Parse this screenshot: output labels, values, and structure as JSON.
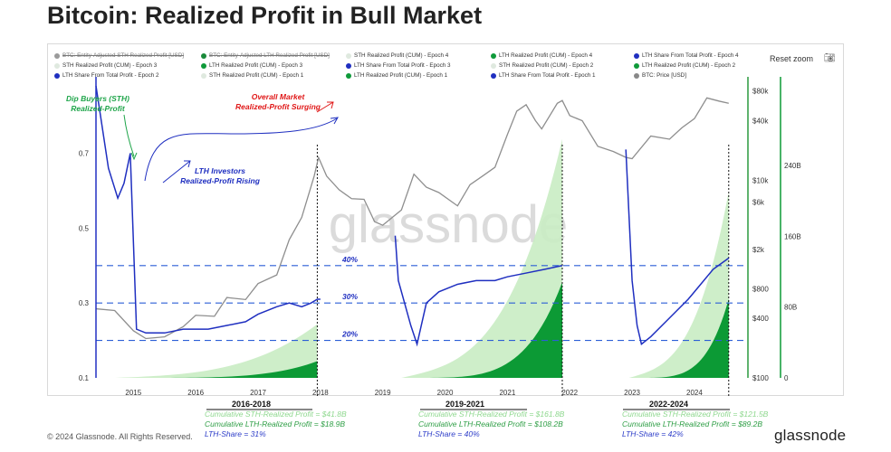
{
  "title": "Bitcoin: Realized Profit in Bull Market",
  "reset_zoom": "Reset zoom",
  "camera_icon": "camera-icon",
  "footer": "© 2024 Glassnode. All Rights Reserved.",
  "logo": "glassnode",
  "watermark": "glassnode",
  "legend": [
    {
      "label": "BTC: Entity-Adjusted STH Realized Profit [USD]",
      "color": "#9a9a9a",
      "struck": true
    },
    {
      "label": "BTC: Entity-Adjusted LTH Realized Profit [USD]",
      "color": "#1a8a3a",
      "struck": true
    },
    {
      "label": "STH Realized Profit (CUM) - Epoch 4",
      "color": "#dfe9df",
      "struck": false
    },
    {
      "label": "LTH Realized Profit (CUM) - Epoch 4",
      "color": "#0f9a3a",
      "struck": false
    },
    {
      "label": "LTH Share From Total Profit - Epoch 4",
      "color": "#1f2fc0",
      "struck": false
    },
    {
      "label": "STH Realized Profit (CUM) - Epoch 3",
      "color": "#dfe9df",
      "struck": false
    },
    {
      "label": "LTH Realized Profit (CUM) - Epoch 3",
      "color": "#0f9a3a",
      "struck": false
    },
    {
      "label": "LTH Share From Total Profit - Epoch 3",
      "color": "#1f2fc0",
      "struck": false
    },
    {
      "label": "STH Realized Profit (CUM) - Epoch 2",
      "color": "#dfe9df",
      "struck": false
    },
    {
      "label": "LTH Realized Profit (CUM) - Epoch 2",
      "color": "#0f9a3a",
      "struck": false
    },
    {
      "label": "LTH Share From Total Profit - Epoch 2",
      "color": "#1f2fc0",
      "struck": false
    },
    {
      "label": "STH Realized Profit (CUM) - Epoch 1",
      "color": "#dfe9df",
      "struck": false
    },
    {
      "label": "LTH Realized Profit (CUM) - Epoch 1",
      "color": "#0f9a3a",
      "struck": false
    },
    {
      "label": "LTH Share From Total Profit - Epoch 1",
      "color": "#1f2fc0",
      "struck": false
    },
    {
      "label": "BTC: Price [USD]",
      "color": "#888888",
      "struck": false
    }
  ],
  "annotations": {
    "dip_buyers": "Dip Buyers (STH)\nRealized-Profit",
    "lth_investors": "LTH Investors\nRealized-Profit Rising",
    "overall_market": "Overall Market\nRealized-Profit Surging"
  },
  "cycles": [
    {
      "header": "2016-2018",
      "sth": "Cumulative STH-Realized Profit  = $41.8B",
      "lth": "Cumulative LTH-Realized Profit    = $18.9B",
      "share": "LTH-Share = 31%"
    },
    {
      "header": "2019-2021",
      "sth": "Cumulative STH-Realized Profit  = $161.8B",
      "lth": "Cumulative LTH-Realized Profit    = $108.2B",
      "share": "LTH-Share = 40%"
    },
    {
      "header": "2022-2024",
      "sth": "Cumulative STH-Realized Profit  = $121.5B",
      "lth": "Cumulative LTH-Realized Profit    = $89.2B",
      "share": "LTH-Share = 42%"
    }
  ],
  "chart_data": {
    "type": "line",
    "x_ticks": [
      "2015",
      "2016",
      "2017",
      "2018",
      "2019",
      "2020",
      "2021",
      "2022",
      "2023",
      "2024"
    ],
    "x_range": [
      2014.4,
      2024.8
    ],
    "left_axis": {
      "ticks": [
        0.1,
        0.3,
        0.5,
        0.7
      ],
      "range": [
        0.1,
        0.88
      ]
    },
    "price_axis": {
      "scale": "log",
      "ticks": [
        100,
        400,
        800,
        2000,
        6000,
        10000,
        40000,
        80000
      ],
      "tick_labels": [
        "$100",
        "$400",
        "$800",
        "$2k",
        "$6k",
        "$10k",
        "$40k",
        "$80k"
      ],
      "range": [
        100,
        90000
      ]
    },
    "profit_axis": {
      "ticks": [
        0,
        80,
        160,
        240
      ],
      "tick_labels": [
        "0",
        "80B",
        "160B",
        "240B"
      ],
      "range": [
        0,
        330
      ]
    },
    "thresholds": [
      {
        "value": 0.4,
        "label": "40%"
      },
      {
        "value": 0.3,
        "label": "30%"
      },
      {
        "value": 0.2,
        "label": "20%"
      }
    ],
    "cycle_ends": [
      2017.95,
      2021.88,
      2024.55
    ],
    "price": {
      "name": "BTC: Price [USD]",
      "x": [
        2014.4,
        2014.7,
        2015.0,
        2015.2,
        2015.5,
        2015.8,
        2016.0,
        2016.3,
        2016.5,
        2016.8,
        2017.0,
        2017.3,
        2017.5,
        2017.7,
        2017.9,
        2017.97,
        2018.1,
        2018.3,
        2018.5,
        2018.7,
        2018.87,
        2019.0,
        2019.3,
        2019.5,
        2019.7,
        2019.9,
        2020.2,
        2020.4,
        2020.6,
        2020.8,
        2021.0,
        2021.15,
        2021.3,
        2021.45,
        2021.55,
        2021.8,
        2021.88,
        2022.0,
        2022.2,
        2022.45,
        2022.7,
        2022.9,
        2023.0,
        2023.3,
        2023.6,
        2023.8,
        2024.0,
        2024.2,
        2024.4,
        2024.55
      ],
      "values": [
        500,
        480,
        300,
        250,
        260,
        330,
        430,
        420,
        650,
        620,
        900,
        1100,
        2500,
        4200,
        11000,
        17000,
        11000,
        8000,
        6500,
        6400,
        3800,
        3500,
        5000,
        11500,
        8500,
        7500,
        5500,
        9000,
        11000,
        13500,
        29000,
        50000,
        58000,
        40000,
        33000,
        60000,
        64000,
        45000,
        40000,
        22000,
        19500,
        17000,
        16500,
        28000,
        26000,
        34000,
        42000,
        68000,
        63000,
        60000
      ]
    },
    "lth_share": {
      "name": "LTH Share From Total Profit",
      "x": [
        2014.4,
        2014.6,
        2014.75,
        2014.85,
        2014.95,
        2015.05,
        2015.2,
        2015.5,
        2015.8,
        2016.0,
        2016.2,
        2016.5,
        2016.8,
        2017.0,
        2017.3,
        2017.5,
        2017.7,
        2017.85,
        2017.95,
        2018.0,
        2019.2,
        2019.25,
        2019.35,
        2019.45,
        2019.55,
        2019.7,
        2019.9,
        2020.2,
        2020.5,
        2020.8,
        2021.0,
        2021.3,
        2021.6,
        2021.88,
        2022.9,
        2023.0,
        2023.08,
        2023.15,
        2023.3,
        2023.6,
        2023.9,
        2024.1,
        2024.3,
        2024.55
      ],
      "values": [
        0.88,
        0.66,
        0.58,
        0.62,
        0.7,
        0.23,
        0.22,
        0.22,
        0.23,
        0.23,
        0.23,
        0.24,
        0.25,
        0.27,
        0.29,
        0.3,
        0.29,
        0.3,
        0.31,
        0.31,
        0.48,
        0.36,
        0.3,
        0.24,
        0.19,
        0.3,
        0.33,
        0.35,
        0.36,
        0.36,
        0.37,
        0.38,
        0.39,
        0.4,
        0.71,
        0.36,
        0.24,
        0.19,
        0.21,
        0.26,
        0.31,
        0.35,
        0.39,
        0.42
      ]
    },
    "cycle_area": [
      {
        "start": 2014.7,
        "end": 2017.95,
        "sth_end": 41.8,
        "lth_end": 18.9
      },
      {
        "start": 2019.3,
        "end": 2021.88,
        "sth_end": 161.8,
        "lth_end": 108.2
      },
      {
        "start": 2022.95,
        "end": 2024.55,
        "sth_end": 121.5,
        "lth_end": 89.2
      }
    ]
  }
}
